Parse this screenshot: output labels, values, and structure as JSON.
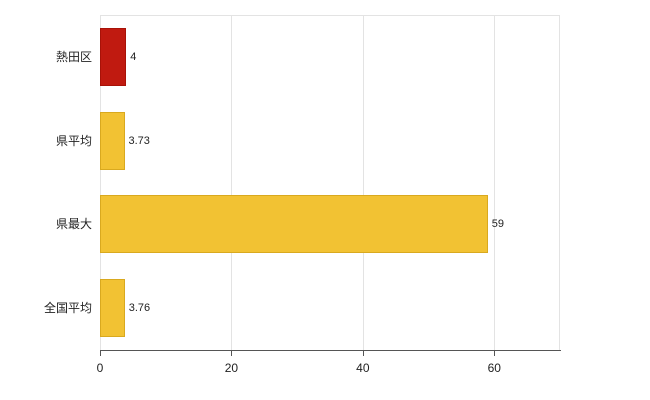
{
  "chart_data": {
    "type": "bar",
    "orientation": "horizontal",
    "title": "",
    "xlabel": "",
    "ylabel": "",
    "categories": [
      "熱田区",
      "県平均",
      "県最大",
      "全国平均"
    ],
    "values": [
      4,
      3.73,
      59,
      3.76
    ],
    "value_labels": [
      "4",
      "3.73",
      "59",
      "3.76"
    ],
    "series": [
      {
        "name": "value",
        "values": [
          4,
          3.73,
          59,
          3.76
        ]
      }
    ],
    "bar_colors": [
      "#c01a10",
      "#f2c233",
      "#f2c233",
      "#f2c233"
    ],
    "bar_border_colors": [
      "#a81208",
      "#d9a91f",
      "#d9a91f",
      "#d9a91f"
    ],
    "xlim": [
      0,
      70
    ],
    "xticks": [
      0,
      20,
      40,
      60
    ],
    "grid": true,
    "legend": "none",
    "highlight_category": "熱田区",
    "colors": {
      "background": "#ffffff",
      "gridline": "#e3e3e3",
      "axis": "#555555",
      "text": "#222222",
      "highlight_bar": "#c01a10",
      "default_bar": "#f2c233"
    }
  }
}
